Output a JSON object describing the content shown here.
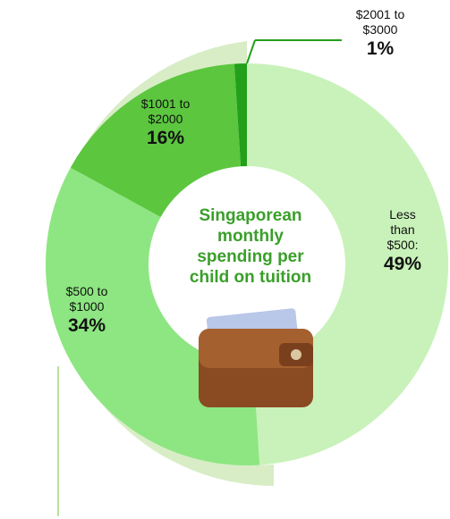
{
  "chart_data": {
    "type": "donut",
    "title": "Singaporean monthly spending per child on tuition",
    "categories": [
      "Less than $500:",
      "$500 to $1000",
      "$1001 to $2000",
      "$2001 to $3000"
    ],
    "values": [
      49,
      34,
      16,
      1
    ],
    "value_labels": [
      "49%",
      "34%",
      "16%",
      "1%"
    ],
    "colors": [
      "#c8f2b9",
      "#8de681",
      "#5cc63f",
      "#23a01a"
    ]
  }
}
